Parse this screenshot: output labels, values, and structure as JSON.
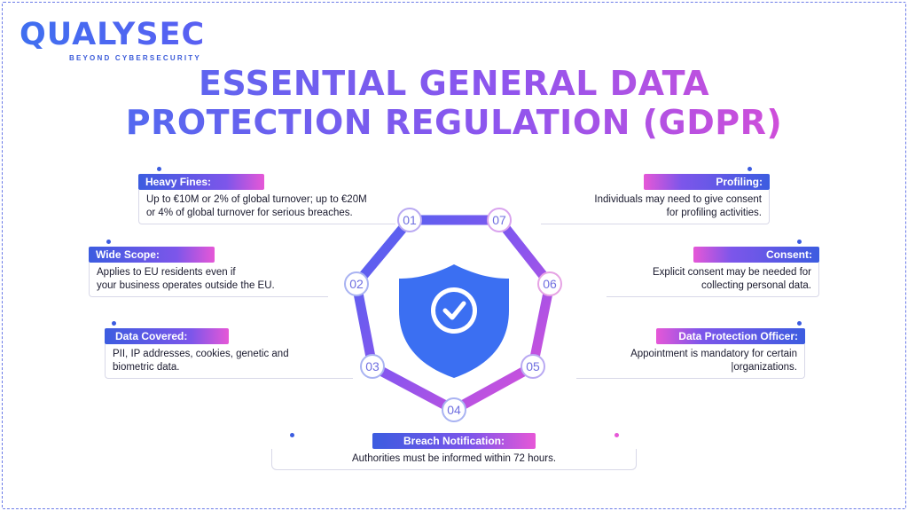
{
  "logo": {
    "wordmark": "QUALYSEC",
    "tagline": "BEYOND CYBERSECURITY"
  },
  "title": {
    "line1": "ESSENTIAL GENERAL DATA",
    "line2": "PROTECTION REGULATION (GDPR)"
  },
  "colors": {
    "blue": "#3f6ff0",
    "purple": "#8e55ee",
    "pink": "#ec4bd1",
    "shield": "#3b6ff2"
  },
  "center_icon": "shield-check-icon",
  "nodes": [
    "01",
    "02",
    "03",
    "04",
    "05",
    "06",
    "07"
  ],
  "cards": {
    "heavy_fines": {
      "label": "Heavy Fines:",
      "text1": "Up to €10M or 2% of global turnover; up to €20M",
      "text2": "or 4% of global turnover for serious breaches."
    },
    "wide_scope": {
      "label": "Wide Scope:",
      "text1": "Applies to EU residents even if",
      "text2": "your business operates outside the EU."
    },
    "data_covered": {
      "label": "Data Covered:",
      "text1": "PII, IP addresses, cookies, genetic and",
      "text2": "biometric data."
    },
    "breach_notification": {
      "label": "Breach Notification:",
      "text1": "Authorities must be informed within 72 hours."
    },
    "dpo": {
      "label": "Data Protection Officer:",
      "text1": "Appointment is mandatory for certain",
      "text2": "|organizations."
    },
    "consent": {
      "label": "Consent:",
      "text1": "Explicit consent may be needed for",
      "text2": "collecting personal data."
    },
    "profiling": {
      "label": "Profiling:",
      "text1": "Individuals may need to give consent",
      "text2": "for profiling activities."
    }
  }
}
